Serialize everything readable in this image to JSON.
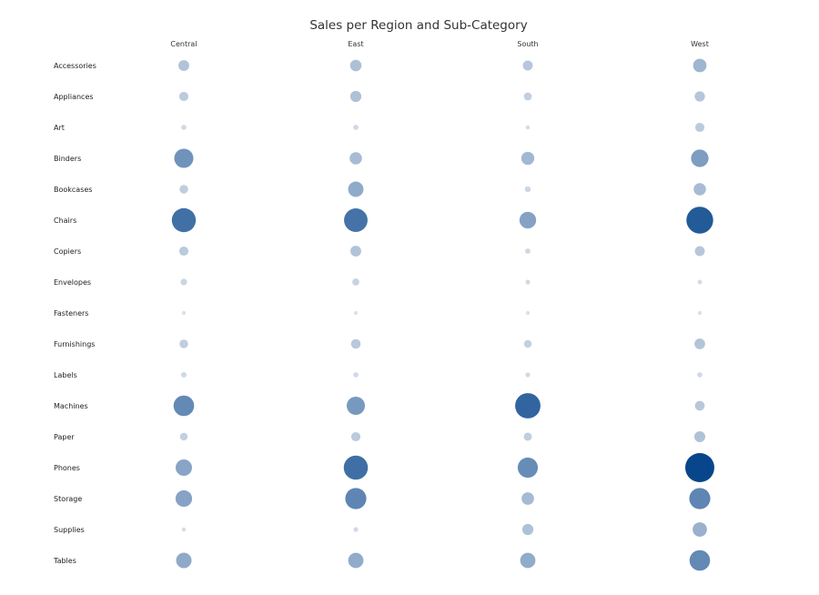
{
  "chart_data": {
    "type": "scatter",
    "title": "Sales per Region and Sub-Category",
    "columns": [
      "Central",
      "East",
      "South",
      "West"
    ],
    "rows": [
      "Accessories",
      "Appliances",
      "Art",
      "Binders",
      "Bookcases",
      "Chairs",
      "Copiers",
      "Envelopes",
      "Fasteners",
      "Furnishings",
      "Labels",
      "Machines",
      "Paper",
      "Phones",
      "Storage",
      "Supplies",
      "Tables"
    ],
    "values": [
      [
        33000,
        37000,
        28000,
        51000
      ],
      [
        24000,
        35000,
        18000,
        30000
      ],
      [
        7500,
        7800,
        4800,
        24000
      ],
      [
        104000,
        43000,
        48000,
        87000
      ],
      [
        21000,
        67000,
        10000,
        43000
      ],
      [
        163000,
        157000,
        79000,
        203000
      ],
      [
        24000,
        33000,
        8000,
        28000
      ],
      [
        12000,
        14000,
        6500,
        5600
      ],
      [
        1300,
        1100,
        1300,
        1500
      ],
      [
        21000,
        26000,
        17000,
        32000
      ],
      [
        8700,
        7600,
        6400,
        7500
      ],
      [
        120000,
        94000,
        182000,
        27000
      ],
      [
        17000,
        24000,
        19000,
        34000
      ],
      [
        76000,
        165000,
        115000,
        240000
      ],
      [
        78000,
        126000,
        44000,
        126000
      ],
      [
        4600,
        6500,
        35000,
        58000
      ],
      [
        68000,
        66000,
        66000,
        120000
      ]
    ],
    "encoding": "circle area and color intensity both proportional to sales",
    "legend": "none",
    "grid": false,
    "colors": {
      "low": "#dde3ec",
      "high": "#08468c"
    }
  }
}
